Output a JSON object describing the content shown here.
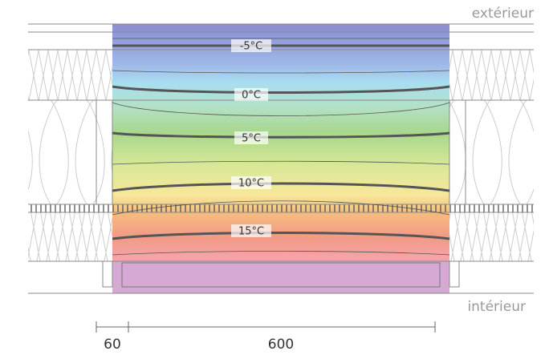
{
  "labels": {
    "exterior": "extérieur",
    "interior": "intérieur"
  },
  "isotherms": [
    {
      "label": "-5°C"
    },
    {
      "label": "0°C"
    },
    {
      "label": "5°C"
    },
    {
      "label": "10°C"
    },
    {
      "label": "15°C"
    }
  ],
  "dimensions": [
    {
      "label": "60"
    },
    {
      "label": "600"
    }
  ]
}
